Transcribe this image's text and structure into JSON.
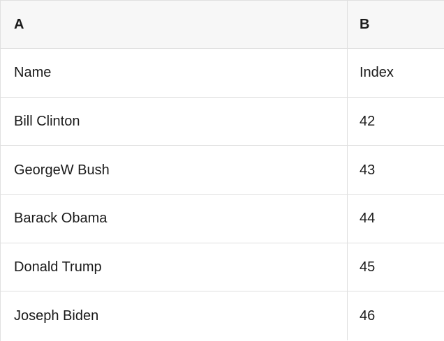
{
  "table": {
    "header": {
      "a": "A",
      "b": "B"
    },
    "rows": [
      {
        "a": "Name",
        "b": "Index"
      },
      {
        "a": "Bill Clinton",
        "b": "42"
      },
      {
        "a": "GeorgeW Bush",
        "b": "43"
      },
      {
        "a": "Barack Obama",
        "b": "44"
      },
      {
        "a": "Donald Trump",
        "b": "45"
      },
      {
        "a": "Joseph Biden",
        "b": "46"
      }
    ],
    "colors": {
      "header_bg": "#f7f7f7",
      "row_bg": "#ffffff",
      "border": "#e0e0e0",
      "text": "#1a1a1a"
    }
  }
}
